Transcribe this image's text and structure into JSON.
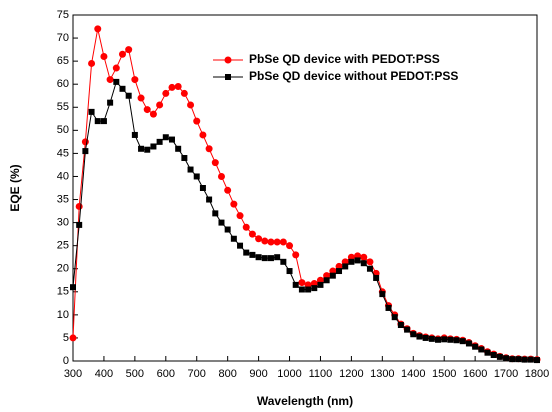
{
  "chart_data": {
    "type": "line",
    "x_label": "Wavelength (nm)",
    "y_label": "EQE (%)",
    "x": [
      300,
      320,
      340,
      360,
      380,
      400,
      420,
      440,
      460,
      480,
      500,
      520,
      540,
      560,
      580,
      600,
      620,
      640,
      660,
      680,
      700,
      720,
      740,
      760,
      780,
      800,
      820,
      840,
      860,
      880,
      900,
      920,
      940,
      960,
      980,
      1000,
      1020,
      1040,
      1060,
      1080,
      1100,
      1120,
      1140,
      1160,
      1180,
      1200,
      1220,
      1240,
      1260,
      1280,
      1300,
      1320,
      1340,
      1360,
      1380,
      1400,
      1420,
      1440,
      1460,
      1480,
      1500,
      1520,
      1540,
      1560,
      1580,
      1600,
      1620,
      1640,
      1660,
      1680,
      1700,
      1720,
      1740,
      1760,
      1780,
      1800
    ],
    "series": [
      {
        "name": "PbSe QD device with PEDOT:PSS",
        "color": "#ff0000",
        "marker": "circle",
        "values": [
          5,
          33.5,
          47.5,
          64.5,
          72,
          66,
          61,
          63.5,
          66.5,
          67.5,
          61,
          57,
          54.5,
          53.5,
          55.5,
          58,
          59.3,
          59.5,
          58,
          55.5,
          52,
          49,
          46,
          43,
          40,
          37,
          34,
          31.5,
          29,
          27.5,
          26.5,
          26,
          25.8,
          25.8,
          25.8,
          25,
          23,
          17,
          16.5,
          16.8,
          17.5,
          18.5,
          19.5,
          20.5,
          21.5,
          22.5,
          22.8,
          22.5,
          21.5,
          19,
          15,
          12,
          10,
          8,
          7,
          6,
          5.5,
          5.2,
          5,
          4.8,
          5,
          4.8,
          4.7,
          4.5,
          4,
          3.3,
          2.7,
          2,
          1.5,
          1,
          0.7,
          0.5,
          0.5,
          0.4,
          0.4,
          0.3
        ]
      },
      {
        "name": "PbSe QD device without PEDOT:PSS",
        "color": "#000000",
        "marker": "square",
        "values": [
          16,
          29.5,
          45.5,
          54,
          52,
          52,
          56,
          60.5,
          59,
          57.5,
          49,
          46,
          45.8,
          46.5,
          47.5,
          48.5,
          48,
          46,
          44,
          41.5,
          40,
          37.5,
          35,
          32,
          30,
          28.5,
          26.5,
          25,
          23.5,
          23,
          22.5,
          22.3,
          22.3,
          22.5,
          21.5,
          19.5,
          16.5,
          15.5,
          15.5,
          15.8,
          16.5,
          17.5,
          18.5,
          19.5,
          20.5,
          21.5,
          21.8,
          21.2,
          20,
          18,
          14.5,
          11.5,
          9.5,
          7.8,
          6.8,
          5.8,
          5.3,
          5,
          4.8,
          4.6,
          4.7,
          4.6,
          4.5,
          4.3,
          3.8,
          3.1,
          2.5,
          1.8,
          1.3,
          0.9,
          0.6,
          0.4,
          0.4,
          0.3,
          0.3,
          0.2
        ]
      }
    ],
    "xlim": [
      300,
      1800
    ],
    "ylim": [
      0,
      75
    ],
    "xticks": [
      300,
      400,
      500,
      600,
      700,
      800,
      900,
      1000,
      1100,
      1200,
      1300,
      1400,
      1500,
      1600,
      1700,
      1800
    ],
    "yticks": [
      0,
      5,
      10,
      15,
      20,
      25,
      30,
      35,
      40,
      45,
      50,
      55,
      60,
      65,
      70,
      75
    ],
    "legend": "upper right"
  }
}
